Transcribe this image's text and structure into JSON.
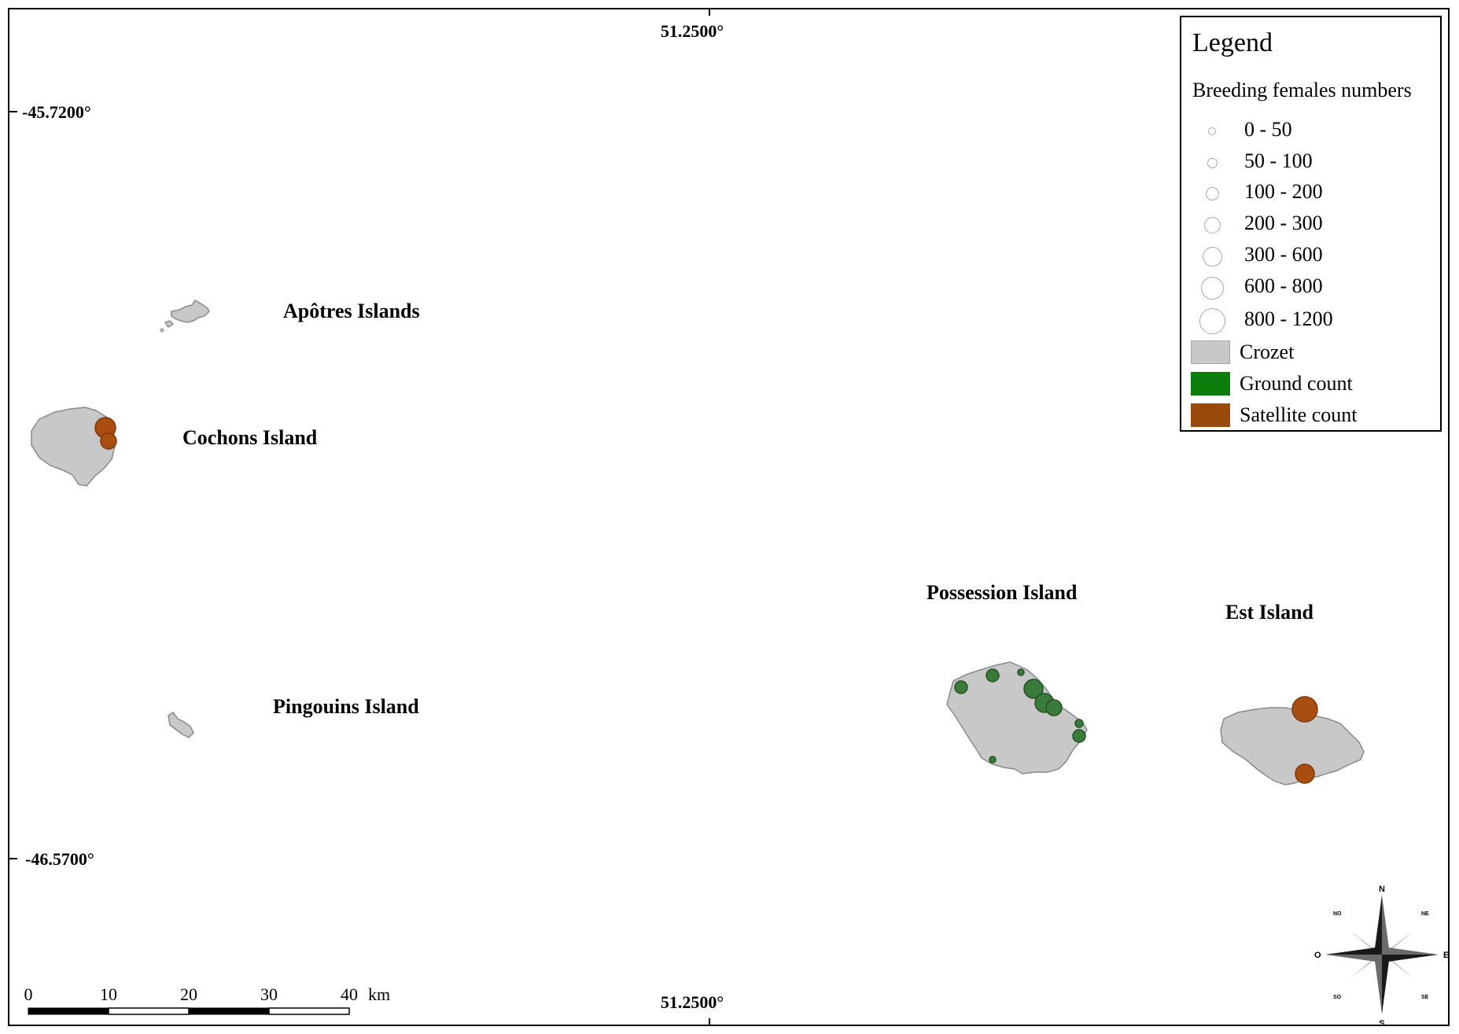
{
  "coordinates": {
    "lon_top": "51.2500°",
    "lon_bottom": "51.2500°",
    "lat_top": "-45.7200°",
    "lat_bottom": "-46.5700°"
  },
  "islands": [
    {
      "name": "Apôtres Islands"
    },
    {
      "name": "Cochons Island"
    },
    {
      "name": "Pingouins Island"
    },
    {
      "name": "Possession Island"
    },
    {
      "name": "Est Island"
    }
  ],
  "legend": {
    "title": "Legend",
    "subtitle": "Breeding females numbers",
    "size_classes": [
      "0 - 50",
      "50 - 100",
      "100 - 200",
      "200 - 300",
      "300 - 600",
      "600 - 800",
      "800 - 1200"
    ],
    "categories": [
      {
        "label": "Crozet",
        "color": "#c8c8c8"
      },
      {
        "label": "Ground count",
        "color": "#0a7d0a"
      },
      {
        "label": "Satellite count",
        "color": "#9a4a0a"
      }
    ]
  },
  "scale_bar": {
    "ticks": [
      "0",
      "10",
      "20",
      "30",
      "40"
    ],
    "unit": "km"
  },
  "compass": {
    "n": "N",
    "s": "S",
    "e": "E",
    "o": "O",
    "ne": "NE",
    "no": "NO",
    "se": "SE",
    "so": "SO"
  },
  "colors": {
    "land": "#c8c8c8",
    "ground_count": "#3a7a3a",
    "satellite_count": "#a94e10"
  }
}
